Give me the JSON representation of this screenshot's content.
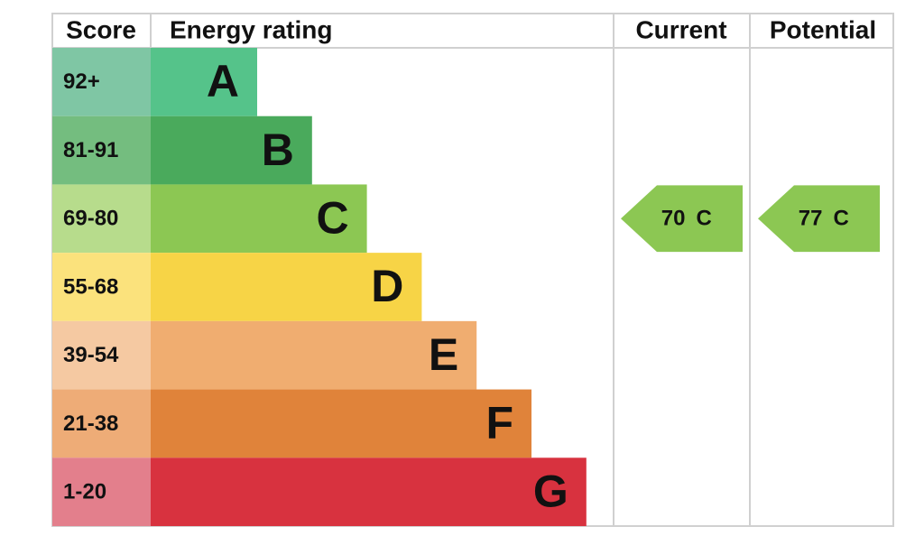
{
  "header": {
    "score": "Score",
    "rating": "Energy rating",
    "current": "Current",
    "potential": "Potential"
  },
  "bands": [
    {
      "score": "92+",
      "letter": "A",
      "score_color": "#7fc6a4",
      "color": "#55c38a"
    },
    {
      "score": "81-91",
      "letter": "B",
      "score_color": "#74bd7f",
      "color": "#4aaa5c"
    },
    {
      "score": "69-80",
      "letter": "C",
      "score_color": "#b7dc8c",
      "color": "#8cc753"
    },
    {
      "score": "55-68",
      "letter": "D",
      "score_color": "#fbe27c",
      "color": "#f7d446"
    },
    {
      "score": "39-54",
      "letter": "E",
      "score_color": "#f5c9a2",
      "color": "#f0ad70"
    },
    {
      "score": "21-38",
      "letter": "F",
      "score_color": "#eeac77",
      "color": "#e0833a"
    },
    {
      "score": "1-20",
      "letter": "G",
      "score_color": "#e37f8c",
      "color": "#d8323f"
    }
  ],
  "current": {
    "value": "70",
    "letter": "C",
    "color": "#8cc753"
  },
  "potential": {
    "value": "77",
    "letter": "C",
    "color": "#8cc753"
  }
}
